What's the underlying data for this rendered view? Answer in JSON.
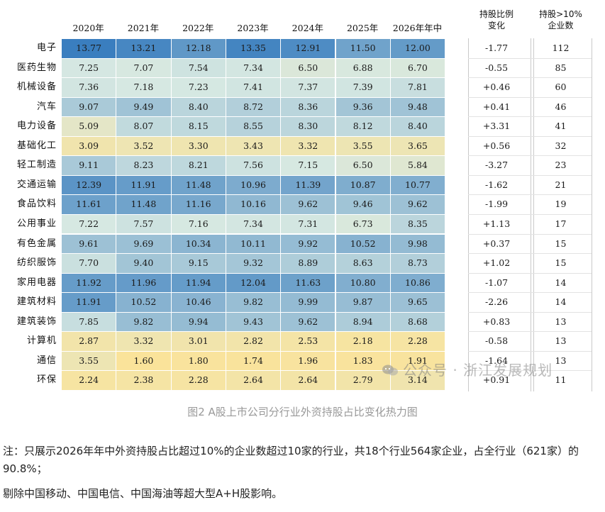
{
  "chart_data": {
    "type": "heatmap",
    "title": "",
    "columns": [
      "2020年",
      "2021年",
      "2022年",
      "2023年",
      "2024年",
      "2025年",
      "2026年年中"
    ],
    "rows": [
      "电子",
      "医药生物",
      "机械设备",
      "汽车",
      "电力设备",
      "基础化工",
      "轻工制造",
      "交通运输",
      "食品饮料",
      "公用事业",
      "有色金属",
      "纺织服饰",
      "家用电器",
      "建筑材料",
      "建筑装饰",
      "计算机",
      "通信",
      "环保"
    ],
    "values": [
      [
        13.77,
        13.21,
        12.18,
        13.35,
        12.91,
        11.5,
        12.0
      ],
      [
        7.25,
        7.07,
        7.54,
        7.34,
        6.5,
        6.88,
        6.7
      ],
      [
        7.36,
        7.18,
        7.23,
        7.41,
        7.37,
        7.39,
        7.81
      ],
      [
        9.07,
        9.49,
        8.4,
        8.72,
        8.36,
        9.36,
        9.48
      ],
      [
        5.09,
        8.07,
        8.15,
        8.55,
        8.3,
        8.12,
        8.4
      ],
      [
        3.09,
        3.52,
        3.3,
        3.43,
        3.32,
        3.55,
        3.65
      ],
      [
        9.11,
        8.23,
        8.21,
        7.56,
        7.15,
        6.5,
        5.84
      ],
      [
        12.39,
        11.91,
        11.48,
        10.96,
        11.39,
        10.87,
        10.77
      ],
      [
        11.61,
        11.48,
        11.16,
        10.16,
        9.62,
        9.46,
        9.62
      ],
      [
        7.22,
        7.57,
        7.16,
        7.34,
        7.31,
        6.73,
        8.35
      ],
      [
        9.61,
        9.69,
        10.34,
        10.11,
        9.92,
        10.52,
        9.98
      ],
      [
        7.7,
        9.4,
        9.15,
        9.32,
        8.89,
        8.63,
        8.73
      ],
      [
        11.92,
        11.96,
        11.94,
        12.04,
        11.63,
        10.8,
        10.86
      ],
      [
        11.91,
        10.52,
        10.46,
        9.82,
        9.99,
        9.87,
        9.65
      ],
      [
        7.85,
        9.82,
        9.94,
        9.43,
        9.62,
        8.94,
        8.68
      ],
      [
        2.87,
        3.32,
        3.01,
        2.82,
        2.53,
        2.18,
        2.28
      ],
      [
        3.55,
        1.6,
        1.8,
        1.74,
        1.96,
        1.83,
        1.91
      ],
      [
        2.24,
        2.38,
        2.28,
        2.64,
        2.64,
        2.79,
        3.14
      ]
    ],
    "change_header": [
      "持股比例",
      "变化"
    ],
    "change": [
      "-1.77",
      "-0.55",
      "+0.46",
      "+0.41",
      "+3.31",
      "+0.56",
      "-3.27",
      "-1.62",
      "-1.99",
      "+1.13",
      "+0.37",
      "+1.02",
      "-1.07",
      "-2.26",
      "+0.83",
      "-0.58",
      "-1.64",
      "+0.91"
    ],
    "count_header": [
      "持股>10%",
      "企业数"
    ],
    "count": [
      112,
      85,
      60,
      46,
      41,
      32,
      23,
      21,
      19,
      17,
      15,
      15,
      14,
      14,
      13,
      13,
      13,
      11
    ],
    "color_scale": {
      "low": "#fae39a",
      "mid": "#d6e8e2",
      "high": "#3a7ebf"
    }
  },
  "watermark": "公众号 · 浙江发展规划",
  "caption": "图2  A股上市公司分行业外资持股占比变化热力图",
  "notes": [
    "注：只展示2026年年中外资持股占比超过10%的企业数超过10家的行业，共18个行业564家企业，占全行业（621家）的90.8%；",
    "剔除中国移动、中国电信、中国海油等超大型A+H股影响。"
  ]
}
